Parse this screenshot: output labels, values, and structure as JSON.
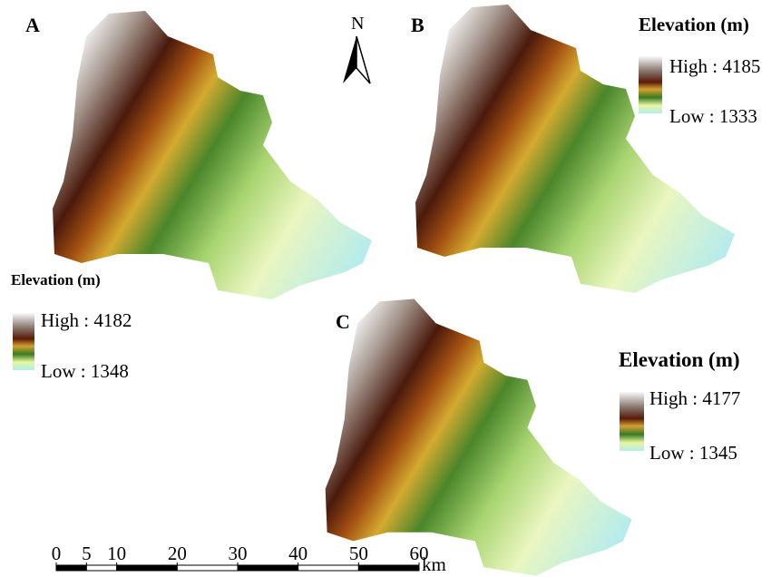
{
  "panels": [
    {
      "label": "A",
      "legend": {
        "title": "Elevation (m)",
        "high": "High : 4182",
        "low": "Low : 1348"
      }
    },
    {
      "label": "B",
      "legend": {
        "title": "Elevation (m)",
        "high": "High : 4185",
        "low": "Low : 1333"
      }
    },
    {
      "label": "C",
      "legend": {
        "title": "Elevation (m)",
        "high": "High : 4177",
        "low": "Low : 1345"
      }
    }
  ],
  "north_arrow": {
    "label": "N"
  },
  "scale_bar": {
    "ticks": [
      0,
      5,
      10,
      20,
      30,
      40,
      50,
      60
    ],
    "unit": "km"
  }
}
